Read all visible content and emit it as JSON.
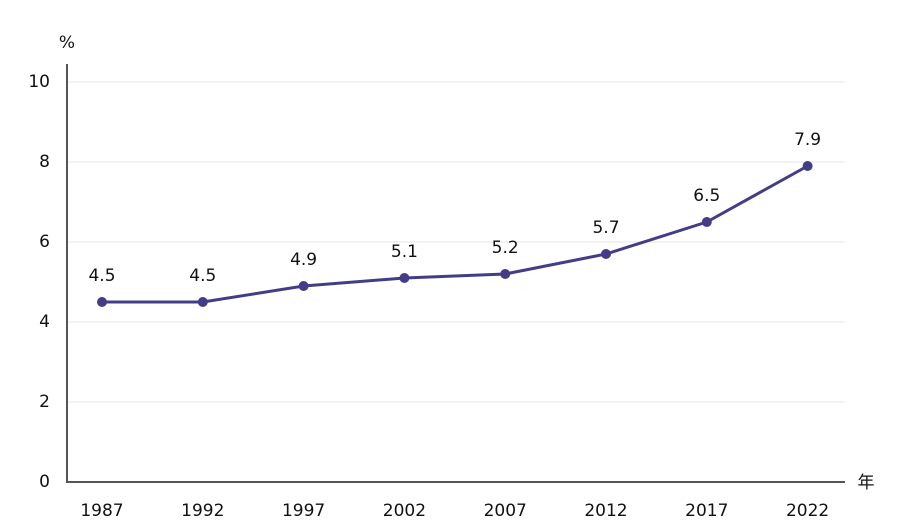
{
  "chart_data": {
    "type": "line",
    "y_label": "%",
    "x_label": "年",
    "categories": [
      "1987",
      "1992",
      "1997",
      "2002",
      "2007",
      "2012",
      "2017",
      "2022"
    ],
    "values": [
      4.5,
      4.5,
      4.9,
      5.1,
      5.2,
      5.7,
      6.5,
      7.9
    ],
    "color": "#433d87",
    "ylim": [
      0,
      10
    ],
    "yticks": [
      0,
      2,
      4,
      6,
      8,
      10
    ],
    "grid": true
  }
}
